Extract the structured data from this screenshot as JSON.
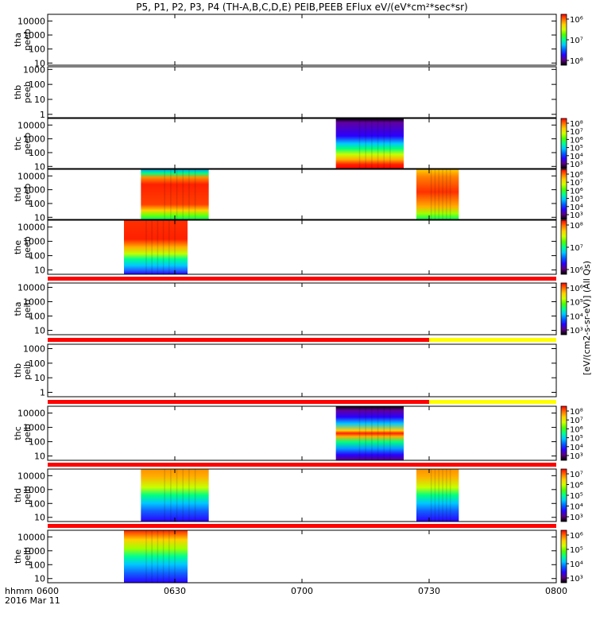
{
  "chart_data": {
    "type": "heatmap",
    "title": "P5, P1, P2, P3, P4 (TH-A,B,C,D,E) PEIB,PEEB EFlux eV/(eV*cm²*sec*sr)",
    "x_axis": {
      "label_line1": "hhmm",
      "label_line2": "2016 Mar 11",
      "ticks": [
        "0600",
        "0630",
        "0700",
        "0730",
        "0800"
      ],
      "range_hhmm": [
        "06:00",
        "08:00"
      ]
    },
    "colorbar_label": "[eV/(cm2-s-sr-eV)] (All Qs)",
    "panels": [
      {
        "id": "tha_peeb",
        "ylabel": [
          "tha",
          "peeb"
        ],
        "ylim": [
          7,
          30000
        ],
        "yscale": "log",
        "yticks": [
          "10",
          "100",
          "1000",
          "10000"
        ],
        "data_intervals": [],
        "colorbar": true,
        "colorbar_ticks": [
          "10⁶",
          "10⁷",
          "10⁸"
        ]
      },
      {
        "id": "thb_peeb",
        "ylabel": [
          "thb",
          "peeb"
        ],
        "ylim": [
          0.6,
          1500
        ],
        "yscale": "log",
        "yticks": [
          "1",
          "10",
          "100",
          "1000"
        ],
        "data_intervals": [],
        "colorbar": false
      },
      {
        "id": "thc_peeb",
        "ylabel": [
          "thc",
          "peeb"
        ],
        "ylim": [
          7,
          30000
        ],
        "yscale": "log",
        "yticks": [
          "10",
          "100",
          "1000",
          "10000"
        ],
        "data_intervals": [
          {
            "start": "07:08",
            "end": "07:24",
            "profile": "thc_e"
          }
        ],
        "colorbar": true,
        "colorbar_ticks": [
          "10⁸",
          "10⁷",
          "10⁶",
          "10⁵",
          "10⁴",
          "10³"
        ]
      },
      {
        "id": "thd_peeb",
        "ylabel": [
          "thd",
          "peeb"
        ],
        "ylim": [
          7,
          30000
        ],
        "yscale": "log",
        "yticks": [
          "10",
          "100",
          "1000",
          "10000"
        ],
        "data_intervals": [
          {
            "start": "06:22",
            "end": "06:38",
            "profile": "thd_e"
          },
          {
            "start": "07:27",
            "end": "07:37",
            "profile": "thd_e2"
          }
        ],
        "colorbar": true,
        "colorbar_ticks": [
          "10⁸",
          "10⁷",
          "10⁶",
          "10⁵",
          "10⁴",
          "10³"
        ]
      },
      {
        "id": "the_peeb",
        "ylabel": [
          "the",
          "peeb"
        ],
        "ylim": [
          5,
          30000
        ],
        "yscale": "log",
        "yticks": [
          "10",
          "100",
          "1000",
          "10000"
        ],
        "data_intervals": [
          {
            "start": "06:18",
            "end": "06:33",
            "profile": "the_e"
          }
        ],
        "colorbar": true,
        "colorbar_ticks": [
          "10⁸",
          "10⁷",
          "10⁶"
        ]
      },
      {
        "id": "tha_peib",
        "ylabel": [
          "tha",
          "peib"
        ],
        "ylim": [
          5,
          20000
        ],
        "yscale": "log",
        "yticks": [
          "10",
          "100",
          "1000",
          "10000"
        ],
        "data_intervals": [],
        "colorbar": true,
        "colorbar_ticks": [
          "10⁶",
          "10⁵",
          "10⁴",
          "10³"
        ]
      },
      {
        "id": "thb_peib",
        "ylabel": [
          "thb",
          "peib"
        ],
        "ylim": [
          0.5,
          2000
        ],
        "yscale": "log",
        "yticks": [
          "1",
          "10",
          "100",
          "1000"
        ],
        "data_intervals": [],
        "colorbar": false
      },
      {
        "id": "thc_peib",
        "ylabel": [
          "thc",
          "peib"
        ],
        "ylim": [
          5,
          30000
        ],
        "yscale": "log",
        "yticks": [
          "10",
          "100",
          "1000",
          "10000"
        ],
        "data_intervals": [
          {
            "start": "07:08",
            "end": "07:24",
            "profile": "thc_i"
          }
        ],
        "colorbar": true,
        "colorbar_ticks": [
          "10⁸",
          "10⁷",
          "10⁶",
          "10⁵",
          "10⁴",
          "10³"
        ]
      },
      {
        "id": "thd_peib",
        "ylabel": [
          "thd",
          "peib"
        ],
        "ylim": [
          5,
          30000
        ],
        "yscale": "log",
        "yticks": [
          "10",
          "100",
          "1000",
          "10000"
        ],
        "data_intervals": [
          {
            "start": "06:22",
            "end": "06:38",
            "profile": "thd_i"
          },
          {
            "start": "07:27",
            "end": "07:37",
            "profile": "thd_i"
          }
        ],
        "colorbar": true,
        "colorbar_ticks": [
          "10⁷",
          "10⁶",
          "10⁵",
          "10⁴",
          "10³"
        ]
      },
      {
        "id": "the_peib",
        "ylabel": [
          "the",
          "peib"
        ],
        "ylim": [
          5,
          30000
        ],
        "yscale": "log",
        "yticks": [
          "10",
          "100",
          "1000",
          "10000"
        ],
        "data_intervals": [
          {
            "start": "06:18",
            "end": "06:33",
            "profile": "the_i"
          }
        ],
        "colorbar": true,
        "colorbar_ticks": [
          "10⁶",
          "10⁵",
          "10⁴",
          "10³"
        ]
      }
    ],
    "status_bars": [
      {
        "after_panel": "the_peeb",
        "segments": [
          {
            "start": "06:00",
            "end": "08:00",
            "color": "#ff0000"
          }
        ]
      },
      {
        "after_panel": "tha_peib",
        "segments": [
          {
            "start": "06:00",
            "end": "07:30",
            "color": "#ff0000"
          },
          {
            "start": "07:30",
            "end": "08:00",
            "color": "#ffff00"
          }
        ]
      },
      {
        "after_panel": "thb_peib",
        "segments": [
          {
            "start": "06:00",
            "end": "07:30",
            "color": "#ff0000"
          },
          {
            "start": "07:30",
            "end": "08:00",
            "color": "#ffff00"
          }
        ]
      },
      {
        "after_panel": "thc_peib",
        "segments": [
          {
            "start": "06:00",
            "end": "08:00",
            "color": "#ff0000"
          }
        ]
      },
      {
        "after_panel": "thd_peib",
        "segments": [
          {
            "start": "06:00",
            "end": "08:00",
            "color": "#ff0000"
          }
        ]
      }
    ],
    "colorscale": [
      "#000000",
      "#5a0080",
      "#2a00ff",
      "#0060ff",
      "#00c8ff",
      "#00ff90",
      "#50ff00",
      "#d0ff00",
      "#ffd000",
      "#ff7000",
      "#ff0000"
    ]
  }
}
